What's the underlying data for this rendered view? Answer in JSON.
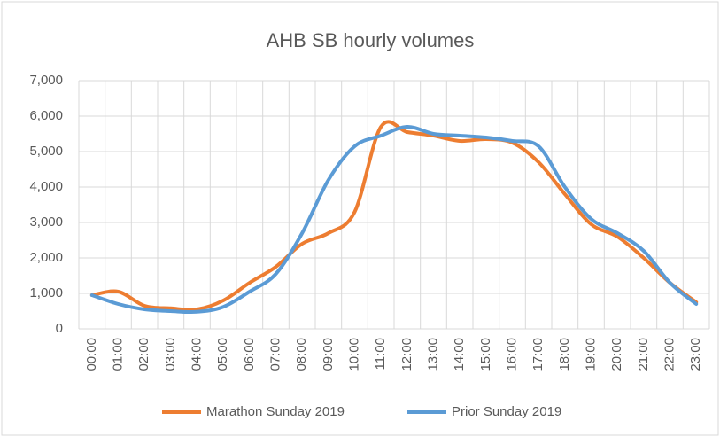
{
  "chart_data": {
    "type": "line",
    "title": "AHB SB hourly volumes",
    "categories": [
      "00:00",
      "01:00",
      "02:00",
      "03:00",
      "04:00",
      "05:00",
      "06:00",
      "07:00",
      "08:00",
      "09:00",
      "10:00",
      "11:00",
      "12:00",
      "13:00",
      "14:00",
      "15:00",
      "16:00",
      "17:00",
      "18:00",
      "19:00",
      "20:00",
      "21:00",
      "22:00",
      "23:00"
    ],
    "series": [
      {
        "name": "Marathon Sunday 2019",
        "color": "#ed7d31",
        "values": [
          950,
          1050,
          650,
          580,
          550,
          800,
          1300,
          1750,
          2400,
          2700,
          3300,
          5700,
          5550,
          5450,
          5300,
          5350,
          5250,
          4700,
          3800,
          2950,
          2600,
          2000,
          1300,
          750
        ]
      },
      {
        "name": "Prior Sunday 2019",
        "color": "#5b9bd5",
        "values": [
          950,
          700,
          550,
          500,
          480,
          620,
          1050,
          1550,
          2700,
          4200,
          5150,
          5450,
          5700,
          5500,
          5450,
          5400,
          5300,
          5150,
          4000,
          3100,
          2700,
          2200,
          1300,
          700
        ]
      }
    ],
    "ylim": [
      0,
      7000
    ],
    "yticks": [
      0,
      {
        "value": 1000,
        "label": "1,000"
      },
      {
        "value": 2000,
        "label": "2,000"
      },
      {
        "value": 3000,
        "label": "3,000"
      },
      {
        "value": 4000,
        "label": "4,000"
      },
      {
        "value": 5000,
        "label": "5,000"
      },
      {
        "value": 6000,
        "label": "6,000"
      },
      {
        "value": 7000,
        "label": "7,000"
      }
    ],
    "grid": true,
    "legend": "bottom"
  }
}
